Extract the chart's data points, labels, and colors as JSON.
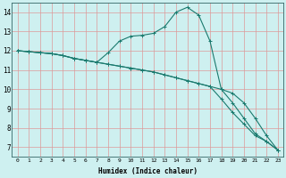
{
  "xlabel": "Humidex (Indice chaleur)",
  "background_color": "#cef0f0",
  "plot_color": "#1a7a6e",
  "xlim": [
    -0.5,
    23.5
  ],
  "ylim": [
    6.5,
    14.5
  ],
  "xticks": [
    0,
    1,
    2,
    3,
    4,
    5,
    6,
    7,
    8,
    9,
    10,
    11,
    12,
    13,
    14,
    15,
    16,
    17,
    18,
    19,
    20,
    21,
    22,
    23
  ],
  "yticks": [
    7,
    8,
    9,
    10,
    11,
    12,
    13,
    14
  ],
  "line1_x": [
    0,
    1,
    2,
    3,
    4,
    5,
    6,
    7,
    8,
    9,
    10,
    11,
    12,
    13,
    14,
    15,
    16,
    17,
    18,
    19,
    20,
    21,
    22,
    23
  ],
  "line1_y": [
    12.0,
    11.95,
    11.9,
    11.85,
    11.75,
    11.6,
    11.5,
    11.4,
    11.3,
    11.2,
    11.1,
    11.0,
    10.9,
    10.75,
    10.6,
    10.45,
    10.3,
    10.15,
    10.0,
    9.8,
    9.3,
    8.5,
    7.6,
    6.85
  ],
  "line2_x": [
    0,
    1,
    2,
    3,
    4,
    5,
    6,
    7,
    8,
    9,
    10,
    11,
    12,
    13,
    14,
    15,
    16,
    17,
    18,
    19,
    20,
    21,
    22,
    23
  ],
  "line2_y": [
    12.0,
    11.95,
    11.9,
    11.85,
    11.75,
    11.6,
    11.5,
    11.4,
    11.9,
    12.5,
    12.75,
    12.8,
    12.9,
    13.25,
    14.0,
    14.25,
    13.85,
    12.5,
    10.0,
    9.3,
    8.5,
    7.7,
    7.3,
    6.85
  ],
  "line3_x": [
    0,
    1,
    2,
    3,
    4,
    5,
    6,
    7,
    8,
    9,
    10,
    11,
    12,
    13,
    14,
    15,
    16,
    17,
    18,
    19,
    20,
    21,
    22,
    23
  ],
  "line3_y": [
    12.0,
    11.95,
    11.9,
    11.85,
    11.75,
    11.6,
    11.5,
    11.4,
    11.3,
    11.2,
    11.1,
    11.0,
    10.9,
    10.75,
    10.6,
    10.45,
    10.3,
    10.15,
    9.5,
    8.8,
    8.2,
    7.6,
    7.3,
    6.85
  ],
  "figsize": [
    3.2,
    2.0
  ],
  "dpi": 100
}
